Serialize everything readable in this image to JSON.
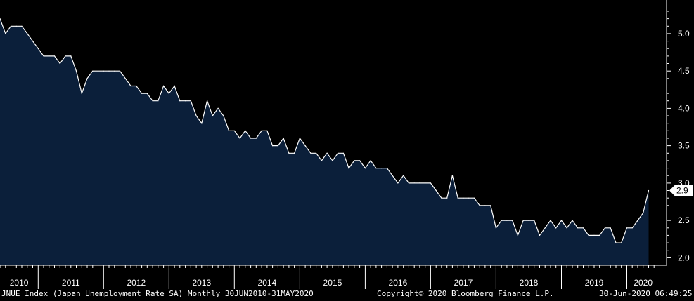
{
  "chart_data": {
    "type": "area",
    "title": "",
    "xlabel": "",
    "ylabel": "",
    "x_start": "2010-06",
    "x_end": "2020-05",
    "ylim": [
      1.9,
      5.45
    ],
    "yticks": [
      2.0,
      2.5,
      3.0,
      3.5,
      4.0,
      4.5,
      5.0
    ],
    "ytick_labels": [
      "2.0",
      "2.5",
      "3.0",
      "3.5",
      "4.0",
      "4.5",
      "5.0"
    ],
    "x_year_labels": [
      "2010",
      "2011",
      "2012",
      "2013",
      "2014",
      "2015",
      "2016",
      "2017",
      "2018",
      "2019",
      "2020"
    ],
    "last_value_label": "2.9",
    "grid": false,
    "series": [
      {
        "values": [
          5.2,
          5.0,
          5.1,
          5.1,
          5.1,
          5.0,
          4.9,
          4.8,
          4.7,
          4.7,
          4.7,
          4.6,
          4.7,
          4.7,
          4.5,
          4.2,
          4.4,
          4.5,
          4.5,
          4.5,
          4.5,
          4.5,
          4.5,
          4.4,
          4.3,
          4.3,
          4.2,
          4.2,
          4.1,
          4.1,
          4.3,
          4.2,
          4.3,
          4.1,
          4.1,
          4.1,
          3.9,
          3.8,
          4.1,
          3.9,
          4.0,
          3.9,
          3.7,
          3.7,
          3.6,
          3.7,
          3.6,
          3.6,
          3.7,
          3.7,
          3.5,
          3.5,
          3.6,
          3.4,
          3.4,
          3.6,
          3.5,
          3.4,
          3.4,
          3.3,
          3.4,
          3.3,
          3.4,
          3.4,
          3.2,
          3.3,
          3.3,
          3.2,
          3.3,
          3.2,
          3.2,
          3.2,
          3.1,
          3.0,
          3.1,
          3.0,
          3.0,
          3.0,
          3.0,
          3.0,
          2.9,
          2.8,
          2.8,
          3.1,
          2.8,
          2.8,
          2.8,
          2.8,
          2.7,
          2.7,
          2.7,
          2.4,
          2.5,
          2.5,
          2.5,
          2.3,
          2.5,
          2.5,
          2.5,
          2.3,
          2.4,
          2.5,
          2.4,
          2.5,
          2.4,
          2.5,
          2.4,
          2.4,
          2.3,
          2.3,
          2.3,
          2.4,
          2.4,
          2.2,
          2.2,
          2.4,
          2.4,
          2.5,
          2.6,
          2.9
        ]
      }
    ],
    "colors": {
      "fill": "#0b1f3a",
      "line": "#ffffff",
      "background": "#000000"
    }
  },
  "footer": {
    "index_text": "JNUE Index (Japan Unemployment Rate SA)  Monthly 30JUN2010-31MAY2020",
    "copyright": "Copyright© 2020 Bloomberg Finance L.P.",
    "timestamp": "30-Jun-2020 06:49:25"
  }
}
